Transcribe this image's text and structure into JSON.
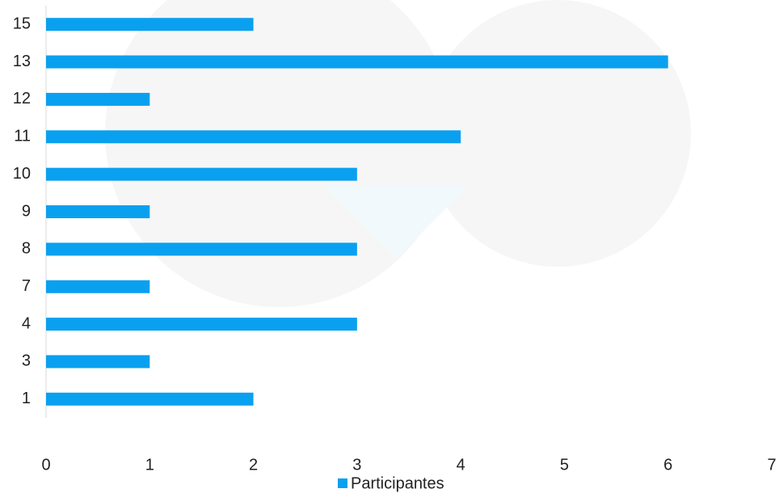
{
  "chart_data": {
    "type": "hbar",
    "categories": [
      "1",
      "3",
      "4",
      "7",
      "8",
      "9",
      "10",
      "11",
      "12",
      "13",
      "15"
    ],
    "series": [
      {
        "name": "Participantes",
        "color": "#0aa0f0",
        "values": [
          2,
          1,
          3,
          1,
          3,
          1,
          3,
          4,
          1,
          6,
          2
        ]
      }
    ],
    "xlim": [
      0,
      7
    ],
    "xticks": [
      0,
      1,
      2,
      3,
      4,
      5,
      6,
      7
    ],
    "grid": false,
    "legend": "bottom"
  }
}
